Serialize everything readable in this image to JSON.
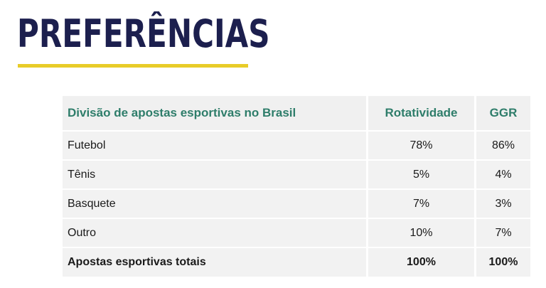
{
  "page": {
    "title": "PREFERÊNCIAS",
    "accent_color": "#e8cc28",
    "title_color": "#1c1f4e",
    "header_text_color": "#2e7d6a"
  },
  "table": {
    "headers": {
      "division": "Divisão de apostas esportivas no Brasil",
      "turnover": "Rotatividade",
      "ggr": "GGR"
    },
    "rows": [
      {
        "sport": "Futebol",
        "turnover": "78%",
        "ggr": "86%"
      },
      {
        "sport": "Tênis",
        "turnover": "5%",
        "ggr": "4%"
      },
      {
        "sport": "Basquete",
        "turnover": "7%",
        "ggr": "3%"
      },
      {
        "sport": "Outro",
        "turnover": "10%",
        "ggr": "7%"
      }
    ],
    "total": {
      "label": "Apostas esportivas totais",
      "turnover": "100%",
      "ggr": "100%"
    }
  }
}
